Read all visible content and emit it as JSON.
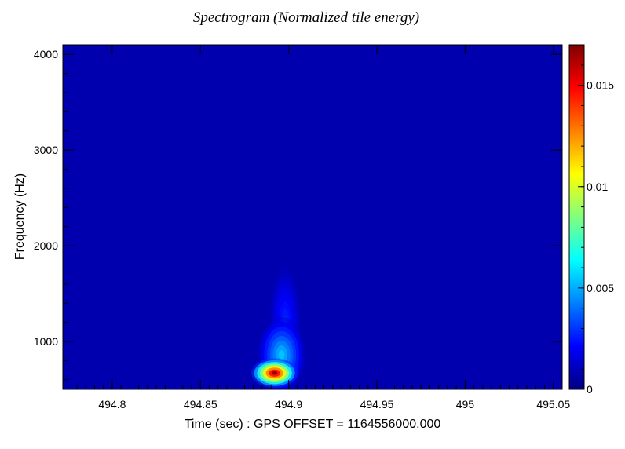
{
  "chart_data": {
    "type": "heatmap",
    "title": "Spectrogram (Normalized tile energy)",
    "xlabel": "Time (sec) : GPS OFFSET = 1164556000.000",
    "ylabel": "Frequency (Hz)",
    "xlim": [
      494.772,
      495.055
    ],
    "ylim": [
      500,
      4100
    ],
    "x_ticks": [
      494.8,
      494.85,
      494.9,
      494.95,
      495,
      495.05
    ],
    "x_tick_labels": [
      "494.8",
      "494.85",
      "494.9",
      "494.95",
      "495",
      "495.05"
    ],
    "y_ticks": [
      1000,
      2000,
      3000,
      4000
    ],
    "y_tick_labels": [
      "1000",
      "2000",
      "3000",
      "4000"
    ],
    "colorbar": {
      "range": [
        0,
        0.017
      ],
      "ticks": [
        0,
        0.005,
        0.01,
        0.015
      ],
      "tick_labels": [
        "0",
        "0.005",
        "0.01",
        "0.015"
      ],
      "colormap": "jet"
    },
    "background_value": 0.0008,
    "features": [
      {
        "time": 494.892,
        "frequency": 670,
        "peak_value": 0.0168,
        "sigma_time": 0.006,
        "sigma_frequency": 70
      },
      {
        "time": 494.896,
        "frequency": 860,
        "peak_value": 0.0055,
        "sigma_time": 0.006,
        "sigma_frequency": 180
      },
      {
        "time": 494.898,
        "frequency": 1200,
        "peak_value": 0.0028,
        "sigma_time": 0.004,
        "sigma_frequency": 260
      }
    ]
  }
}
